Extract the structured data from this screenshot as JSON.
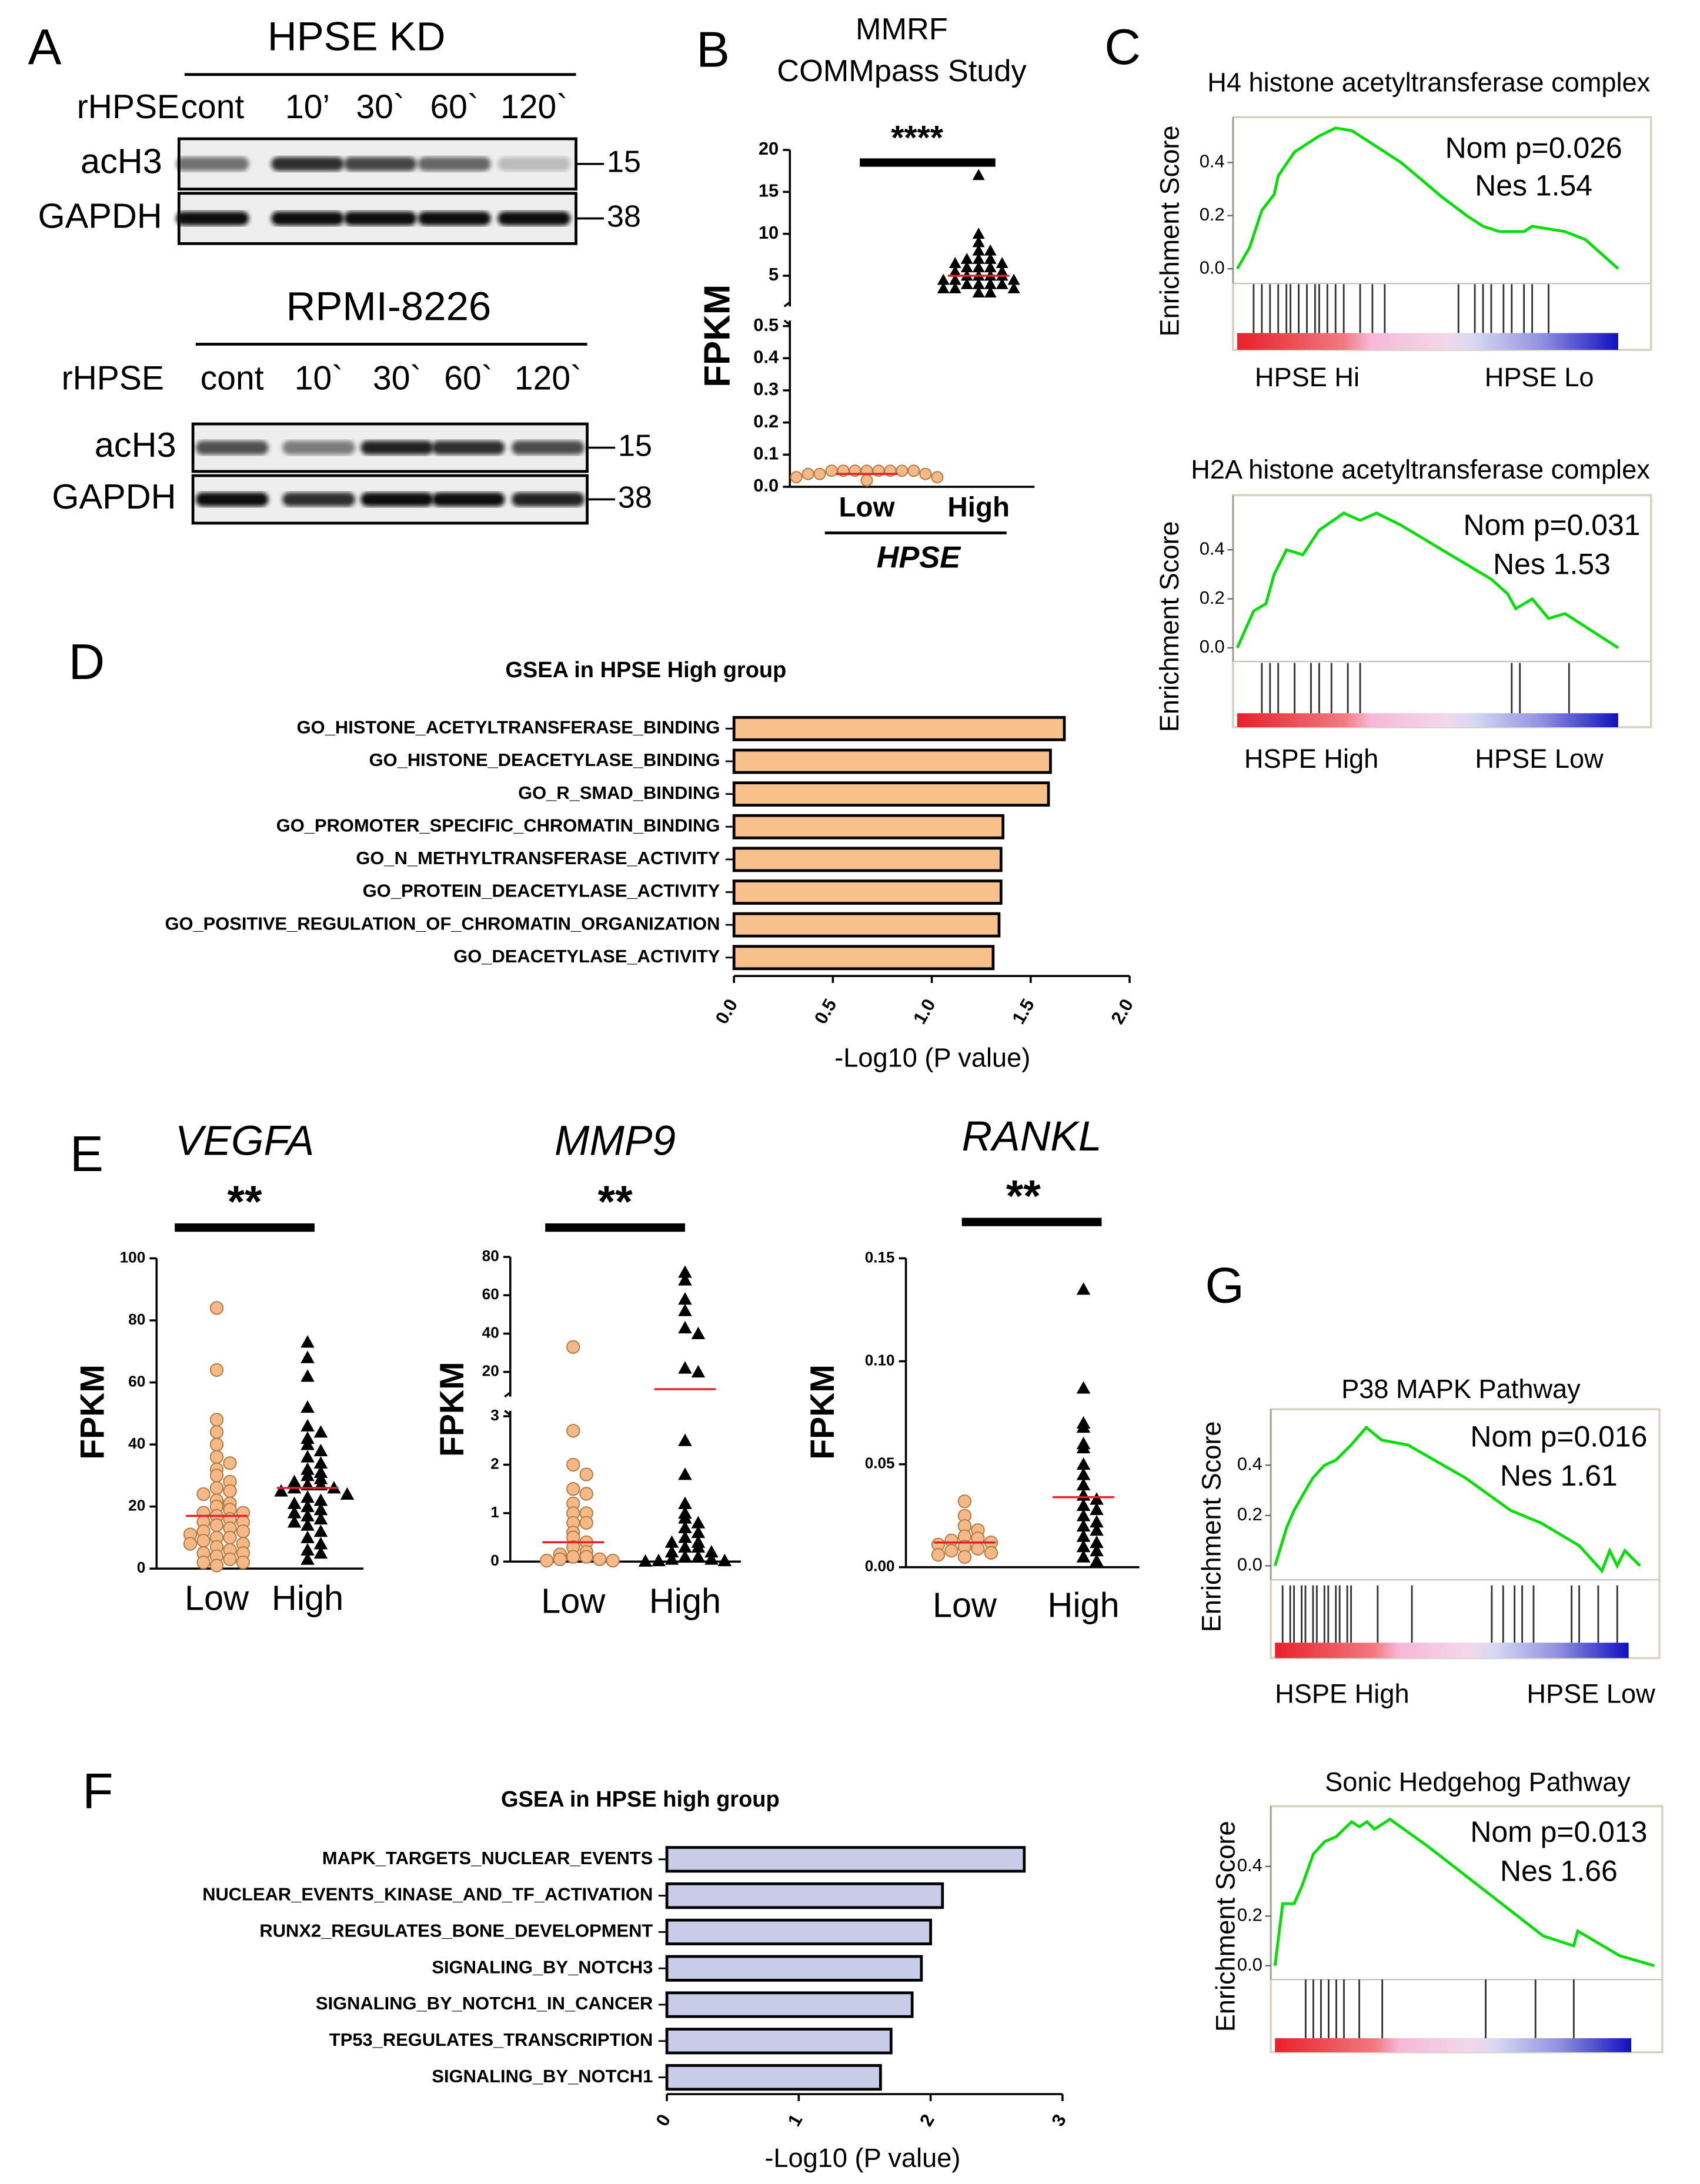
{
  "panel_labels": [
    "A",
    "B",
    "C",
    "D",
    "E",
    "F",
    "G"
  ],
  "blots": [
    {
      "title": "HPSE KD",
      "treatment": "rHPSE",
      "lanes": [
        "cont",
        "10’",
        "30`",
        "60`",
        "120`"
      ],
      "rows": [
        {
          "name": "acH3",
          "kda": 15
        },
        {
          "name": "GAPDH",
          "kda": 38
        }
      ]
    },
    {
      "title": "RPMI-8226",
      "treatment": "rHPSE",
      "lanes": [
        "cont",
        "10`",
        "30`",
        "60`",
        "120`"
      ],
      "rows": [
        {
          "name": "acH3",
          "kda": 15
        },
        {
          "name": "GAPDH",
          "kda": 38
        }
      ]
    }
  ],
  "chart_data": [
    {
      "type": "scatter",
      "title": [
        "MMRF",
        "COMMpass Study"
      ],
      "ylabel": "FPKM",
      "xlabel": "HPSE",
      "significance": "****",
      "categories": [
        "Low",
        "High"
      ],
      "colors": [
        "#f5b887",
        "#000000"
      ],
      "markers": [
        "circle",
        "triangle"
      ],
      "ylim": [
        0,
        20
      ],
      "y_break": [
        0.5,
        2
      ],
      "yticks": [
        {
          "value": 0,
          "label": "0.0"
        },
        0.1,
        0.2,
        0.3,
        0.4,
        0.5,
        5,
        10,
        15,
        20
      ],
      "values": [
        [
          0.05,
          0.05,
          0.05,
          0.05,
          0.05,
          0.05,
          0.05,
          0.05,
          0.04,
          0.04,
          0.04,
          0.03,
          0.03,
          0.02
        ],
        [
          17,
          10,
          9,
          8,
          8,
          7,
          7,
          7,
          6.5,
          6.5,
          6,
          6,
          6,
          5.5,
          5.5,
          5,
          5,
          5,
          5,
          4.5,
          4.5,
          4.5,
          4,
          4,
          4,
          4,
          3.5,
          3.5,
          3.5,
          3,
          3
        ]
      ],
      "means": [
        0.04,
        5
      ]
    },
    {
      "type": "line",
      "title": "H4 histone acetyltransferase complex",
      "ylabel": "Enrichment Score",
      "color": "#00e000",
      "annotations": [
        "Nom p=0.026",
        "Nes 1.54"
      ],
      "group_labels": [
        "HPSE Hi",
        "HPSE Lo"
      ],
      "xlim": [
        0,
        1
      ],
      "ylim": [
        -0.05,
        0.55
      ],
      "yticks": [
        {
          "value": 0,
          "label": "0.0"
        },
        0.2,
        0.4
      ],
      "x": [
        0,
        0.03,
        0.06,
        0.09,
        0.1,
        0.14,
        0.18,
        0.2,
        0.24,
        0.28,
        0.32,
        0.4,
        0.5,
        0.56,
        0.6,
        0.64,
        0.7,
        0.72,
        0.8,
        0.85,
        0.93
      ],
      "values": [
        0,
        0.08,
        0.22,
        0.28,
        0.35,
        0.44,
        0.48,
        0.5,
        0.53,
        0.52,
        0.48,
        0.4,
        0.27,
        0.2,
        0.16,
        0.14,
        0.14,
        0.16,
        0.14,
        0.11,
        0
      ],
      "hits": [
        0.04,
        0.06,
        0.08,
        0.1,
        0.12,
        0.13,
        0.15,
        0.17,
        0.19,
        0.2,
        0.22,
        0.24,
        0.26,
        0.3,
        0.33,
        0.36,
        0.54,
        0.58,
        0.6,
        0.62,
        0.65,
        0.67,
        0.7,
        0.72,
        0.76
      ]
    },
    {
      "type": "line",
      "title": "H2A histone acetyltransferase complex",
      "ylabel": "Enrichment Score",
      "color": "#00e000",
      "annotations": [
        "Nom p=0.031",
        "Nes 1.53"
      ],
      "group_labels": [
        "HSPE High",
        "HPSE Low"
      ],
      "xlim": [
        0,
        1
      ],
      "ylim": [
        -0.05,
        0.6
      ],
      "yticks": [
        {
          "value": 0,
          "label": "0.0"
        },
        0.2,
        0.4
      ],
      "x": [
        0,
        0.04,
        0.07,
        0.09,
        0.12,
        0.16,
        0.2,
        0.26,
        0.3,
        0.34,
        0.4,
        0.5,
        0.62,
        0.66,
        0.68,
        0.72,
        0.76,
        0.8,
        0.93
      ],
      "values": [
        0,
        0.15,
        0.18,
        0.3,
        0.4,
        0.38,
        0.48,
        0.55,
        0.52,
        0.55,
        0.5,
        0.4,
        0.28,
        0.22,
        0.16,
        0.2,
        0.12,
        0.14,
        0
      ],
      "hits": [
        0.06,
        0.08,
        0.1,
        0.14,
        0.18,
        0.2,
        0.23,
        0.27,
        0.3,
        0.67,
        0.69,
        0.81
      ]
    },
    {
      "type": "bar",
      "orientation": "horizontal",
      "title": "GSEA in HPSE High group",
      "xlabel": "-Log10 (P value)",
      "color": "#f8c08a",
      "categories": [
        "GO_HISTONE_ACETYLTRANSFERASE_BINDING",
        "GO_HISTONE_DEACETYLASE_BINDING",
        "GO_R_SMAD_BINDING",
        "GO_PROMOTER_SPECIFIC_CHROMATIN_BINDING",
        "GO_N_METHYLTRANSFERASE_ACTIVITY",
        "GO_PROTEIN_DEACETYLASE_ACTIVITY",
        "GO_POSITIVE_REGULATION_OF_CHROMATIN_ORGANIZATION",
        "GO_DEACETYLASE_ACTIVITY"
      ],
      "values": [
        1.67,
        1.6,
        1.59,
        1.36,
        1.35,
        1.35,
        1.34,
        1.31
      ],
      "xlim": [
        0,
        2
      ],
      "xticks": [
        {
          "value": 0,
          "label": "0.0"
        },
        0.5,
        {
          "value": 1,
          "label": "1.0"
        },
        1.5,
        {
          "value": 2,
          "label": "2.0"
        }
      ]
    },
    {
      "type": "scatter",
      "title": "VEGFA",
      "ylabel": "FPKM",
      "significance": "**",
      "categories": [
        "Low",
        "High"
      ],
      "colors": [
        "#f5b887",
        "#000000"
      ],
      "markers": [
        "circle",
        "triangle"
      ],
      "ylim": [
        0,
        100
      ],
      "yticks": [
        0,
        20,
        40,
        60,
        80,
        100
      ],
      "values": [
        [
          84,
          64,
          48,
          44,
          40,
          36,
          34,
          32,
          30,
          28,
          26,
          25,
          24,
          22,
          21,
          20,
          19,
          18,
          18,
          17,
          16,
          15,
          15,
          14,
          13,
          12,
          12,
          11,
          10,
          10,
          9,
          8,
          8,
          7,
          6,
          5,
          5,
          4,
          3,
          2,
          2,
          1
        ],
        [
          73,
          68,
          62,
          52,
          46,
          44,
          42,
          40,
          38,
          36,
          34,
          32,
          31,
          30,
          29,
          28,
          27,
          27,
          26,
          26,
          25,
          24,
          23,
          22,
          21,
          20,
          19,
          18,
          17,
          16,
          15,
          14,
          12,
          10,
          8,
          6,
          5,
          3
        ]
      ],
      "means": [
        17,
        26
      ]
    },
    {
      "type": "scatter",
      "title": "MMP9",
      "ylabel": "FPKM",
      "significance": "**",
      "categories": [
        "Low",
        "High"
      ],
      "colors": [
        "#f5b887",
        "#000000"
      ],
      "markers": [
        "circle",
        "triangle"
      ],
      "ylim": [
        0,
        80
      ],
      "y_break": [
        3,
        10
      ],
      "yticks": [
        0,
        1,
        2,
        3,
        20,
        40,
        60,
        80
      ],
      "values": [
        [
          33,
          2.7,
          2,
          1.8,
          1.5,
          1.4,
          1.2,
          1,
          1,
          0.8,
          0.8,
          0.6,
          0.5,
          0.4,
          0.3,
          0.2,
          0.15,
          0.1,
          0.1,
          0.05,
          0.05,
          0.02,
          0.02
        ],
        [
          72,
          68,
          58,
          52,
          43,
          40,
          22,
          20,
          2.5,
          1.8,
          1.2,
          1,
          0.9,
          0.8,
          0.7,
          0.6,
          0.5,
          0.4,
          0.4,
          0.3,
          0.3,
          0.2,
          0.2,
          0.1,
          0.1,
          0.05,
          0.05,
          0.02,
          0.02,
          0.01
        ]
      ],
      "means": [
        0.4,
        11
      ]
    },
    {
      "type": "scatter",
      "title": "RANKL",
      "ylabel": "FPKM",
      "significance": "**",
      "categories": [
        "Low",
        "High"
      ],
      "colors": [
        "#f5b887",
        "#000000"
      ],
      "markers": [
        "circle",
        "triangle"
      ],
      "ylim": [
        0,
        0.15
      ],
      "yticks": [
        {
          "value": 0,
          "label": "0.00"
        },
        0.05,
        {
          "value": 0.1,
          "label": "0.10"
        },
        0.15
      ],
      "values": [
        [
          0.032,
          0.025,
          0.02,
          0.018,
          0.015,
          0.014,
          0.013,
          0.012,
          0.011,
          0.01,
          0.009,
          0.008,
          0.007,
          0.006,
          0.005
        ],
        [
          0.135,
          0.087,
          0.07,
          0.068,
          0.06,
          0.058,
          0.05,
          0.045,
          0.04,
          0.035,
          0.033,
          0.03,
          0.028,
          0.025,
          0.022,
          0.02,
          0.018,
          0.015,
          0.012,
          0.01,
          0.008,
          0.005,
          0.003
        ]
      ],
      "means": [
        0.012,
        0.034
      ]
    },
    {
      "type": "bar",
      "orientation": "horizontal",
      "title": "GSEA in HPSE high group",
      "xlabel": "-Log10 (P value)",
      "color": "#c8cce8",
      "categories": [
        "MAPK_TARGETS_NUCLEAR_EVENTS",
        "NUCLEAR_EVENTS_KINASE_AND_TF_ACTIVATION",
        "RUNX2_REGULATES_BONE_DEVELOPMENT",
        "SIGNALING_BY_NOTCH3",
        "SIGNALING_BY_NOTCH1_IN_CANCER",
        "TP53_REGULATES_TRANSCRIPTION",
        "SIGNALING_BY_NOTCH1"
      ],
      "values": [
        2.71,
        2.09,
        2.0,
        1.93,
        1.86,
        1.7,
        1.62
      ],
      "xlim": [
        0,
        3
      ],
      "xticks": [
        0,
        1,
        2,
        3
      ]
    },
    {
      "type": "line",
      "title": "P38 MAPK Pathway",
      "ylabel": "Enrichment Score",
      "color": "#00e000",
      "annotations": [
        "Nom p=0.016",
        "Nes 1.61"
      ],
      "group_labels": [
        "HSPE High",
        "HPSE Low"
      ],
      "xlim": [
        0,
        1
      ],
      "ylim": [
        -0.05,
        0.6
      ],
      "yticks": [
        {
          "value": 0,
          "label": "0.0"
        },
        0.2,
        0.4
      ],
      "x": [
        0,
        0.03,
        0.05,
        0.08,
        0.1,
        0.13,
        0.16,
        0.2,
        0.24,
        0.28,
        0.35,
        0.5,
        0.62,
        0.7,
        0.8,
        0.86,
        0.88,
        0.9,
        0.92,
        0.96
      ],
      "values": [
        0,
        0.15,
        0.22,
        0.3,
        0.35,
        0.4,
        0.42,
        0.48,
        0.55,
        0.5,
        0.48,
        0.35,
        0.22,
        0.17,
        0.08,
        -0.02,
        0.06,
        0,
        0.06,
        0
      ],
      "hits": [
        0.02,
        0.04,
        0.05,
        0.07,
        0.08,
        0.1,
        0.11,
        0.13,
        0.14,
        0.16,
        0.17,
        0.19,
        0.2,
        0.27,
        0.36,
        0.57,
        0.6,
        0.63,
        0.65,
        0.68,
        0.78,
        0.8,
        0.85,
        0.9
      ]
    },
    {
      "type": "line",
      "title": "Sonic Hedgehog Pathway",
      "ylabel": "Enrichment Score",
      "color": "#00e000",
      "annotations": [
        "Nom p=0.013",
        "Nes 1.66"
      ],
      "xlim": [
        0,
        1
      ],
      "ylim": [
        -0.05,
        0.62
      ],
      "yticks": [
        {
          "value": 0,
          "label": "0.0"
        },
        0.2,
        0.4
      ],
      "x": [
        0,
        0.02,
        0.05,
        0.07,
        0.1,
        0.13,
        0.16,
        0.2,
        0.22,
        0.24,
        0.26,
        0.3,
        0.4,
        0.5,
        0.6,
        0.7,
        0.78,
        0.79,
        0.9,
        0.99
      ],
      "values": [
        0,
        0.25,
        0.25,
        0.32,
        0.45,
        0.5,
        0.52,
        0.58,
        0.56,
        0.58,
        0.55,
        0.59,
        0.48,
        0.36,
        0.24,
        0.12,
        0.08,
        0.14,
        0.04,
        0
      ],
      "hits": [
        0.08,
        0.1,
        0.12,
        0.14,
        0.16,
        0.18,
        0.22,
        0.28,
        0.55,
        0.68,
        0.78
      ]
    }
  ]
}
